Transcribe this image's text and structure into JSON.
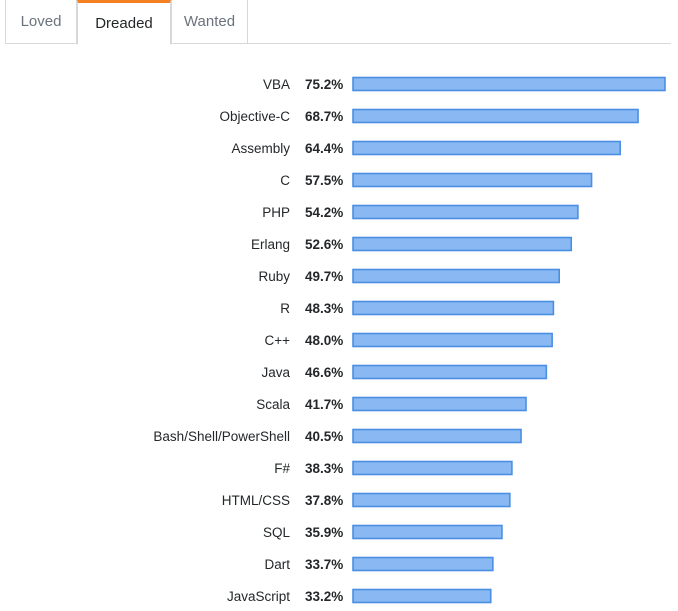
{
  "tabs": [
    {
      "label": "Loved",
      "active": false
    },
    {
      "label": "Dreaded",
      "active": true
    },
    {
      "label": "Wanted",
      "active": false
    }
  ],
  "colors": {
    "bar_fill": "#8ab8f2",
    "bar_stroke": "#4a90e2",
    "active_tab_accent": "#f48024"
  },
  "chart_data": {
    "type": "bar",
    "orientation": "horizontal",
    "value_suffix": "%",
    "xlim": [
      0,
      75.2
    ],
    "grid": false,
    "categories": [
      "VBA",
      "Objective-C",
      "Assembly",
      "C",
      "PHP",
      "Erlang",
      "Ruby",
      "R",
      "C++",
      "Java",
      "Scala",
      "Bash/Shell/PowerShell",
      "F#",
      "HTML/CSS",
      "SQL",
      "Dart",
      "JavaScript"
    ],
    "values": [
      75.2,
      68.7,
      64.4,
      57.5,
      54.2,
      52.6,
      49.7,
      48.3,
      48.0,
      46.6,
      41.7,
      40.5,
      38.3,
      37.8,
      35.9,
      33.7,
      33.2
    ],
    "value_labels": [
      "75.2%",
      "68.7%",
      "64.4%",
      "57.5%",
      "54.2%",
      "52.6%",
      "49.7%",
      "48.3%",
      "48.0%",
      "46.6%",
      "41.7%",
      "40.5%",
      "38.3%",
      "37.8%",
      "35.9%",
      "33.7%",
      "33.2%"
    ]
  }
}
